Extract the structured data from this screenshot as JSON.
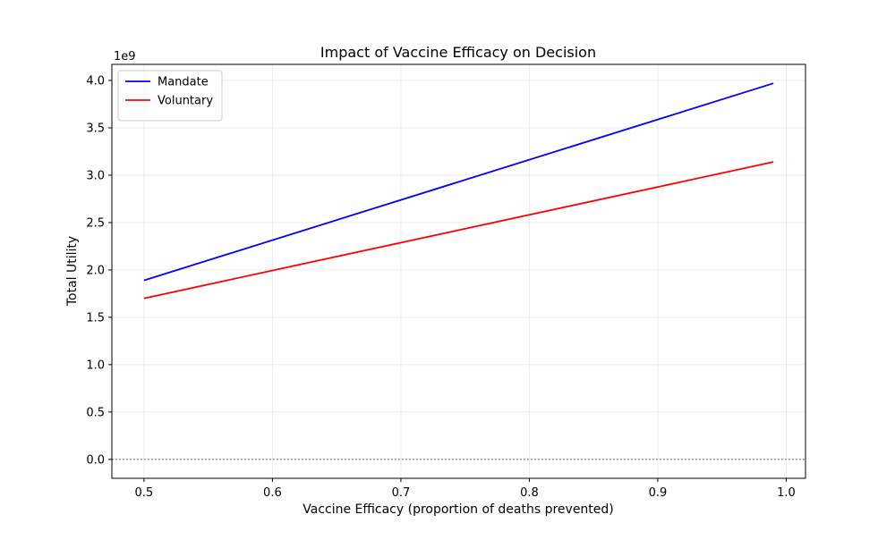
{
  "chart_data": {
    "type": "line",
    "title": "Impact of Vaccine Efficacy on Decision",
    "xlabel": "Vaccine Efficacy (proportion of deaths prevented)",
    "ylabel": "Total Utility",
    "y_offset_label": "1e9",
    "xlim": [
      0.475,
      1.015
    ],
    "ylim": [
      -0.2,
      4.17
    ],
    "x_ticks": [
      0.5,
      0.6,
      0.7,
      0.8,
      0.9,
      1.0
    ],
    "x_tick_labels": [
      "0.5",
      "0.6",
      "0.7",
      "0.8",
      "0.9",
      "1.0"
    ],
    "y_ticks": [
      0.0,
      0.5,
      1.0,
      1.5,
      2.0,
      2.5,
      3.0,
      3.5,
      4.0
    ],
    "y_tick_labels": [
      "0.0",
      "0.5",
      "1.0",
      "1.5",
      "2.0",
      "2.5",
      "3.0",
      "3.5",
      "4.0"
    ],
    "grid": true,
    "legend_position": "top-left",
    "reference_line": {
      "y": 0.0,
      "style": "dotted",
      "color": "#808080"
    },
    "series": [
      {
        "name": "Mandate",
        "color": "#0000ff",
        "x": [
          0.5,
          0.99
        ],
        "y": [
          1.89,
          3.97
        ]
      },
      {
        "name": "Voluntary",
        "color": "#ff0000",
        "x": [
          0.5,
          0.99
        ],
        "y": [
          1.7,
          3.14
        ]
      }
    ]
  }
}
